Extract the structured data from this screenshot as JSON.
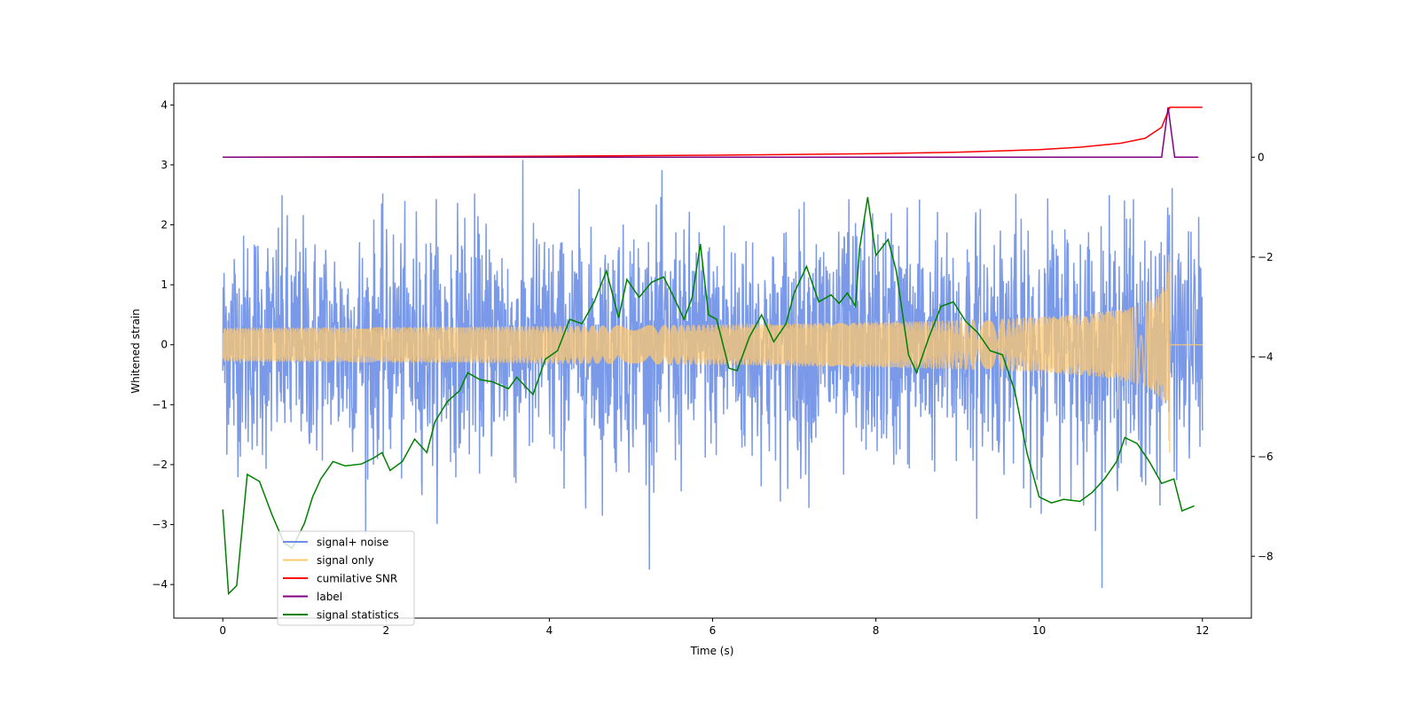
{
  "chart_data": {
    "type": "line",
    "title": "",
    "xlabel": "Time (s)",
    "ylabel": "Whitened strain",
    "y2label": "",
    "xlim": [
      -0.6,
      12.6
    ],
    "ylim": [
      -4.56,
      4.36
    ],
    "y2lim": [
      -9.24,
      1.48
    ],
    "xticks": [
      0,
      2,
      4,
      6,
      8,
      10,
      12
    ],
    "yticks": [
      -4,
      -3,
      -2,
      -1,
      0,
      1,
      2,
      3,
      4
    ],
    "y2ticks": [
      -8,
      -6,
      -4,
      -2,
      0
    ],
    "grid": false,
    "legend_position": "lower-left",
    "series": [
      {
        "name": "signal+ noise",
        "color": "#6c8ee6",
        "axis": "left",
        "kind": "noise",
        "t_range": [
          0,
          12
        ],
        "std": 0.95,
        "samples": 2400
      },
      {
        "name": "signal only",
        "color": "#ffc870",
        "axis": "left",
        "kind": "chirp",
        "t_range": [
          0,
          12
        ],
        "merger_time": 11.6,
        "peak_amplitude": 2.3
      },
      {
        "name": "cumilative SNR",
        "color": "#ff0000",
        "axis": "right",
        "x": [
          0,
          2,
          4,
          6,
          8,
          9,
          10,
          10.5,
          11,
          11.3,
          11.5,
          11.6,
          12
        ],
        "y": [
          0.0,
          0.01,
          0.02,
          0.04,
          0.07,
          0.1,
          0.15,
          0.2,
          0.28,
          0.38,
          0.6,
          1.0,
          1.0
        ]
      },
      {
        "name": "label",
        "color": "#800080",
        "axis": "right",
        "x": [
          0,
          11.5,
          11.58,
          11.66,
          11.95
        ],
        "y": [
          0,
          0,
          1,
          0,
          0
        ]
      },
      {
        "name": "signal statistics",
        "color": "#008000",
        "axis": "right",
        "x": [
          0,
          0.07,
          0.17,
          0.3,
          0.45,
          0.6,
          0.75,
          0.85,
          1.0,
          1.1,
          1.2,
          1.35,
          1.5,
          1.7,
          1.85,
          1.95,
          2.05,
          2.2,
          2.35,
          2.5,
          2.6,
          2.75,
          2.9,
          3.0,
          3.15,
          3.3,
          3.5,
          3.6,
          3.8,
          3.95,
          4.1,
          4.25,
          4.4,
          4.55,
          4.7,
          4.85,
          4.95,
          5.1,
          5.25,
          5.4,
          5.5,
          5.65,
          5.75,
          5.85,
          5.95,
          6.05,
          6.2,
          6.3,
          6.45,
          6.6,
          6.75,
          6.9,
          7.0,
          7.15,
          7.3,
          7.45,
          7.55,
          7.65,
          7.75,
          7.8,
          7.9,
          8.0,
          8.15,
          8.25,
          8.4,
          8.5,
          8.65,
          8.8,
          8.95,
          9.1,
          9.25,
          9.4,
          9.55,
          9.7,
          9.85,
          10.0,
          10.15,
          10.3,
          10.5,
          10.65,
          10.8,
          10.95,
          11.05,
          11.2,
          11.35,
          11.5,
          11.65,
          11.75,
          11.9
        ],
        "y": [
          -7.06,
          -8.75,
          -8.59,
          -6.36,
          -6.5,
          -7.16,
          -7.73,
          -7.84,
          -7.34,
          -6.81,
          -6.45,
          -6.1,
          -6.19,
          -6.15,
          -6.03,
          -5.92,
          -6.28,
          -6.1,
          -5.65,
          -5.92,
          -5.3,
          -4.9,
          -4.68,
          -4.32,
          -4.46,
          -4.5,
          -4.64,
          -4.41,
          -4.76,
          -4.05,
          -3.88,
          -3.25,
          -3.34,
          -2.9,
          -2.28,
          -3.22,
          -2.45,
          -2.81,
          -2.51,
          -2.4,
          -2.72,
          -3.25,
          -2.81,
          -1.74,
          -3.16,
          -3.25,
          -4.23,
          -4.28,
          -3.61,
          -3.16,
          -3.7,
          -3.34,
          -2.72,
          -2.19,
          -2.9,
          -2.76,
          -2.93,
          -2.72,
          -2.99,
          -1.83,
          -0.8,
          -1.97,
          -1.65,
          -2.28,
          -3.96,
          -4.32,
          -3.61,
          -2.99,
          -2.9,
          -3.29,
          -3.52,
          -3.88,
          -3.96,
          -4.68,
          -5.92,
          -6.81,
          -6.93,
          -6.86,
          -6.9,
          -6.72,
          -6.45,
          -6.1,
          -5.62,
          -5.74,
          -6.1,
          -6.54,
          -6.45,
          -7.09,
          -6.99
        ]
      }
    ]
  }
}
